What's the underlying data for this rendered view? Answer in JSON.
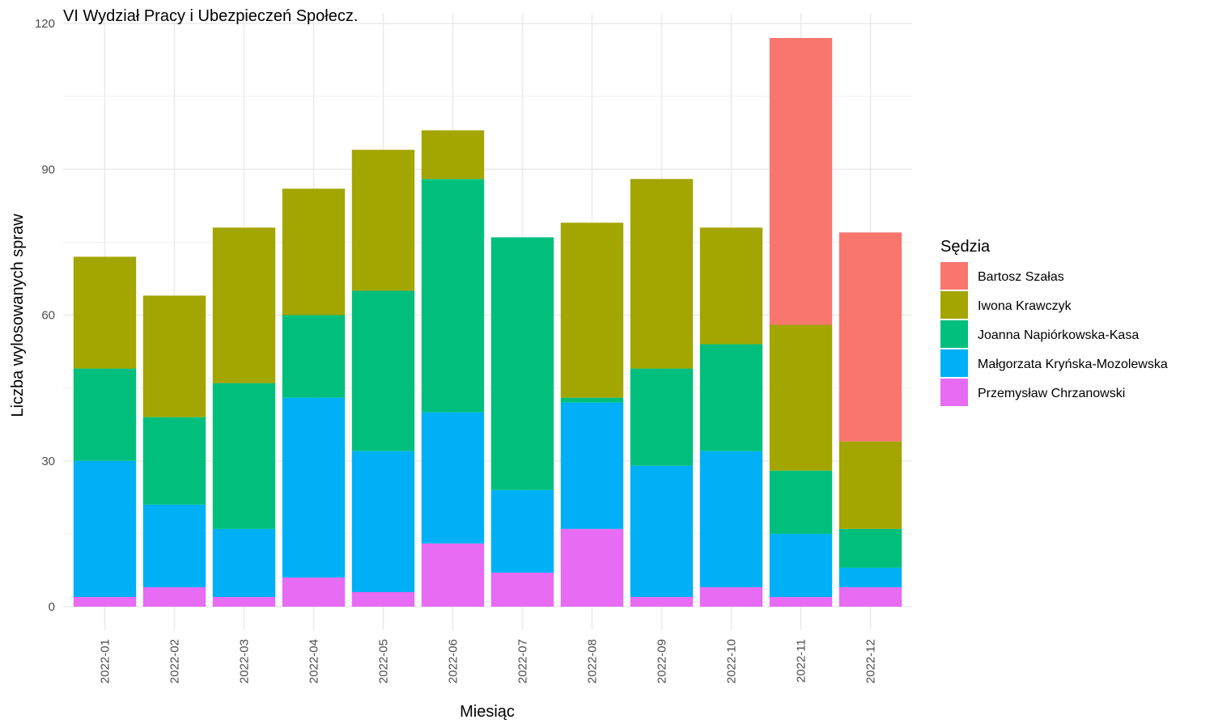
{
  "chart_data": {
    "type": "bar",
    "stacked": true,
    "title": "VI Wydział Pracy i Ubezpieczeń Społecz.",
    "xlabel": "Miesiąc",
    "ylabel": "Liczba wylosowanych spraw",
    "ylim": [
      0,
      120
    ],
    "yticks": [
      "0",
      "30",
      "60",
      "90",
      "120"
    ],
    "grid": true,
    "legend_title": "Sędzia",
    "legend_position": "right",
    "categories": [
      "2022-01",
      "2022-02",
      "2022-03",
      "2022-04",
      "2022-05",
      "2022-06",
      "2022-07",
      "2022-08",
      "2022-09",
      "2022-10",
      "2022-11",
      "2022-12"
    ],
    "series": [
      {
        "name": "Przemysław Chrzanowski",
        "color": "#E76BF3",
        "values": [
          2,
          4,
          2,
          6,
          3,
          13,
          7,
          16,
          2,
          4,
          2,
          4
        ]
      },
      {
        "name": "Małgorzata Kryńska-Mozolewska",
        "color": "#00B0F6",
        "values": [
          28,
          17,
          14,
          37,
          29,
          27,
          17,
          26,
          27,
          28,
          13,
          4
        ]
      },
      {
        "name": "Joanna Napiórkowska-Kasa",
        "color": "#00BF7D",
        "values": [
          19,
          18,
          30,
          17,
          33,
          48,
          52,
          1,
          20,
          22,
          13,
          8
        ]
      },
      {
        "name": "Iwona Krawczyk",
        "color": "#A3A500",
        "values": [
          23,
          25,
          32,
          26,
          29,
          10,
          0,
          36,
          39,
          24,
          30,
          18
        ]
      },
      {
        "name": "Bartosz Szałas",
        "color": "#F8766D",
        "values": [
          0,
          0,
          0,
          0,
          0,
          0,
          0,
          0,
          0,
          0,
          59,
          43
        ]
      }
    ],
    "legend_order": [
      "Bartosz Szałas",
      "Iwona Krawczyk",
      "Joanna Napiórkowska-Kasa",
      "Małgorzata Kryńska-Mozolewska",
      "Przemysław Chrzanowski"
    ]
  }
}
